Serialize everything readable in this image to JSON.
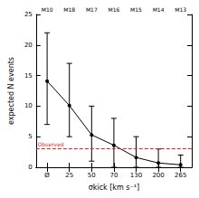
{
  "chart_data": {
    "type": "line",
    "x_label": "σkick [km s⁻¹]",
    "y_label": "expected N events",
    "categories": [
      "Ø",
      "25",
      "50",
      "70",
      "130",
      "200",
      "265"
    ],
    "top_categories": [
      "M10",
      "M18",
      "M17",
      "M16",
      "M15",
      "M14",
      "M13"
    ],
    "values": [
      14.1,
      10.1,
      5.3,
      3.6,
      1.6,
      0.7,
      0.4
    ],
    "lower": [
      7,
      5,
      1,
      0,
      0,
      0,
      0
    ],
    "upper": [
      22,
      17,
      10,
      8,
      5,
      3,
      2
    ],
    "color": "#000000",
    "marker": "circle",
    "ylim": [
      0,
      25
    ],
    "yticks": [
      0,
      5,
      10,
      15,
      20,
      25
    ],
    "grid": false,
    "reference_line": {
      "label": "Observed",
      "value": 3,
      "color": "#d62728",
      "line_style": "dashed"
    }
  }
}
